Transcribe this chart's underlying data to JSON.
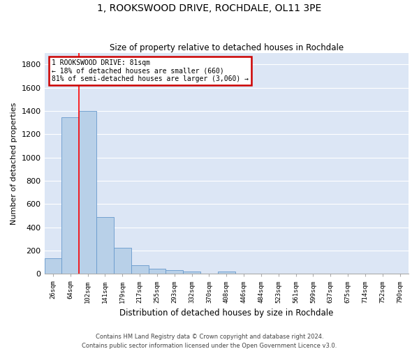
{
  "title": "1, ROOKSWOOD DRIVE, ROCHDALE, OL11 3PE",
  "subtitle": "Size of property relative to detached houses in Rochdale",
  "xlabel": "Distribution of detached houses by size in Rochdale",
  "ylabel": "Number of detached properties",
  "bar_categories": [
    "26sqm",
    "64sqm",
    "102sqm",
    "141sqm",
    "179sqm",
    "217sqm",
    "255sqm",
    "293sqm",
    "332sqm",
    "370sqm",
    "408sqm",
    "446sqm",
    "484sqm",
    "523sqm",
    "561sqm",
    "599sqm",
    "637sqm",
    "675sqm",
    "714sqm",
    "752sqm",
    "790sqm"
  ],
  "bar_values": [
    135,
    1345,
    1400,
    490,
    225,
    75,
    45,
    30,
    18,
    0,
    20,
    0,
    0,
    0,
    0,
    0,
    0,
    0,
    0,
    0,
    0
  ],
  "bar_color": "#b8d0e8",
  "bar_edge_color": "#6699cc",
  "bg_color": "#dce6f5",
  "grid_color": "#ffffff",
  "red_line_x": 1.5,
  "annotation_title": "1 ROOKSWOOD DRIVE: 81sqm",
  "annotation_line2": "← 18% of detached houses are smaller (660)",
  "annotation_line3": "81% of semi-detached houses are larger (3,060) →",
  "annotation_box_color": "#cc0000",
  "ylim": [
    0,
    1900
  ],
  "yticks": [
    0,
    200,
    400,
    600,
    800,
    1000,
    1200,
    1400,
    1600,
    1800
  ],
  "footnote1": "Contains HM Land Registry data © Crown copyright and database right 2024.",
  "footnote2": "Contains public sector information licensed under the Open Government Licence v3.0."
}
